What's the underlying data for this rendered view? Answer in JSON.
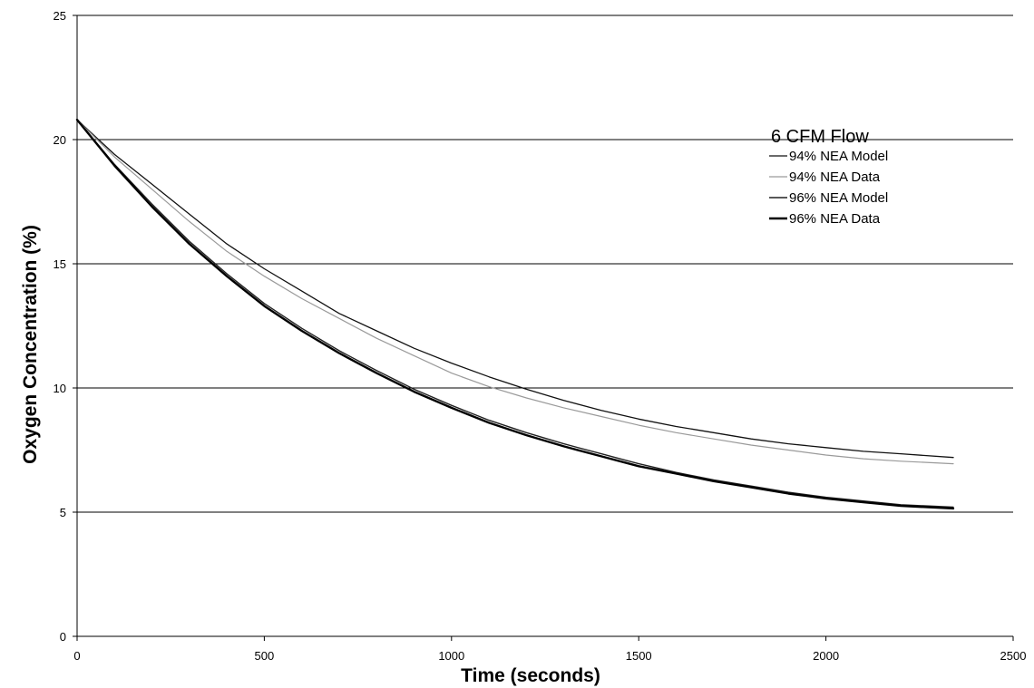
{
  "chart_data": {
    "type": "line",
    "title": "",
    "xlabel": "Time (seconds)",
    "ylabel": "Oxygen Concentration (%)",
    "xlim": [
      0,
      2500
    ],
    "ylim": [
      0,
      25
    ],
    "x_ticks": [
      "0",
      "500",
      "1000",
      "1500",
      "2000",
      "2500"
    ],
    "y_ticks": [
      "0",
      "5",
      "10",
      "15",
      "20",
      "25"
    ],
    "grid": "horizontal",
    "legend": {
      "title": "6 CFM Flow",
      "position": "top-right",
      "entries": [
        "94% NEA Model",
        "94% NEA Data",
        "96% NEA Model",
        "96% NEA Data"
      ]
    },
    "series": [
      {
        "name": "94% NEA Model",
        "color": "#111111",
        "x": [
          0,
          100,
          200,
          300,
          400,
          500,
          600,
          700,
          800,
          900,
          1000,
          1100,
          1200,
          1300,
          1400,
          1500,
          1600,
          1700,
          1800,
          1900,
          2000,
          2100,
          2200,
          2340
        ],
        "y": [
          20.8,
          19.4,
          18.2,
          17.0,
          15.8,
          14.8,
          13.9,
          13.0,
          12.3,
          11.6,
          11.0,
          10.45,
          9.95,
          9.5,
          9.1,
          8.75,
          8.45,
          8.2,
          7.95,
          7.75,
          7.6,
          7.45,
          7.35,
          7.2
        ]
      },
      {
        "name": "94% NEA Data",
        "color": "#9a9a9a",
        "x": [
          0,
          100,
          200,
          300,
          400,
          500,
          600,
          700,
          800,
          900,
          1000,
          1100,
          1200,
          1300,
          1400,
          1500,
          1600,
          1700,
          1800,
          1900,
          2000,
          2100,
          2200,
          2340
        ],
        "y": [
          20.8,
          19.3,
          18.0,
          16.7,
          15.5,
          14.5,
          13.6,
          12.8,
          12.0,
          11.3,
          10.6,
          10.05,
          9.6,
          9.2,
          8.85,
          8.5,
          8.2,
          7.95,
          7.7,
          7.5,
          7.3,
          7.15,
          7.05,
          6.95
        ]
      },
      {
        "name": "96% NEA Model",
        "color": "#222222",
        "x": [
          0,
          100,
          200,
          300,
          400,
          500,
          600,
          700,
          800,
          900,
          1000,
          1100,
          1200,
          1300,
          1400,
          1500,
          1600,
          1700,
          1800,
          1900,
          2000,
          2100,
          2200,
          2340
        ],
        "y": [
          20.8,
          19.0,
          17.4,
          15.9,
          14.6,
          13.4,
          12.4,
          11.5,
          10.7,
          9.95,
          9.3,
          8.7,
          8.2,
          7.75,
          7.35,
          6.95,
          6.6,
          6.3,
          6.05,
          5.8,
          5.6,
          5.45,
          5.3,
          5.2
        ]
      },
      {
        "name": "96% NEA Data",
        "color": "#000000",
        "x": [
          0,
          100,
          200,
          300,
          400,
          500,
          600,
          700,
          800,
          900,
          1000,
          1100,
          1200,
          1300,
          1400,
          1500,
          1600,
          1700,
          1800,
          1900,
          2000,
          2100,
          2200,
          2340
        ],
        "y": [
          20.8,
          18.95,
          17.3,
          15.8,
          14.5,
          13.3,
          12.3,
          11.4,
          10.6,
          9.85,
          9.2,
          8.6,
          8.1,
          7.65,
          7.25,
          6.85,
          6.55,
          6.25,
          6.0,
          5.75,
          5.55,
          5.4,
          5.25,
          5.15
        ]
      }
    ]
  }
}
